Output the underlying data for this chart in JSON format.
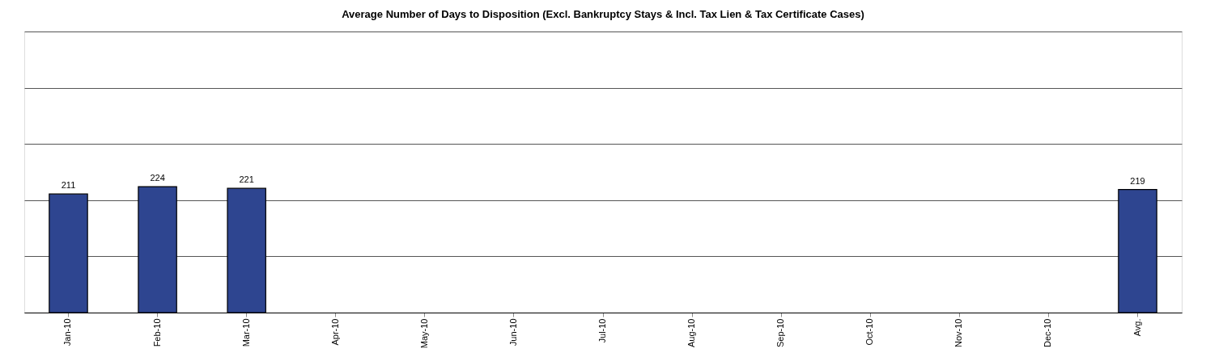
{
  "chart_data": {
    "type": "bar",
    "title": "Average Number of Days to Disposition (Excl. Bankruptcy Stays & Incl. Tax Lien & Tax Certificate Cases)",
    "categories": [
      "Jan-10",
      "Feb-10",
      "Mar-10",
      "Apr-10",
      "May-10",
      "Jun-10",
      "Jul-10",
      "Aug-10",
      "Sep-10",
      "Oct-10",
      "Nov-10",
      "Dec-10",
      "Avg."
    ],
    "values": [
      211,
      224,
      221,
      null,
      null,
      null,
      null,
      null,
      null,
      null,
      null,
      null,
      219
    ],
    "color": "#2e4590",
    "ylim": [
      0,
      500
    ],
    "yticks": [
      {
        "value": 0,
        "label": null
      },
      {
        "value": 100,
        "label": null
      },
      {
        "value": 200,
        "label": null
      },
      {
        "value": 300,
        "label": null
      },
      {
        "value": 400,
        "label": null
      },
      {
        "value": 500,
        "label": null
      }
    ],
    "grid": "y",
    "tick_labels": "x",
    "data_labels": true
  }
}
